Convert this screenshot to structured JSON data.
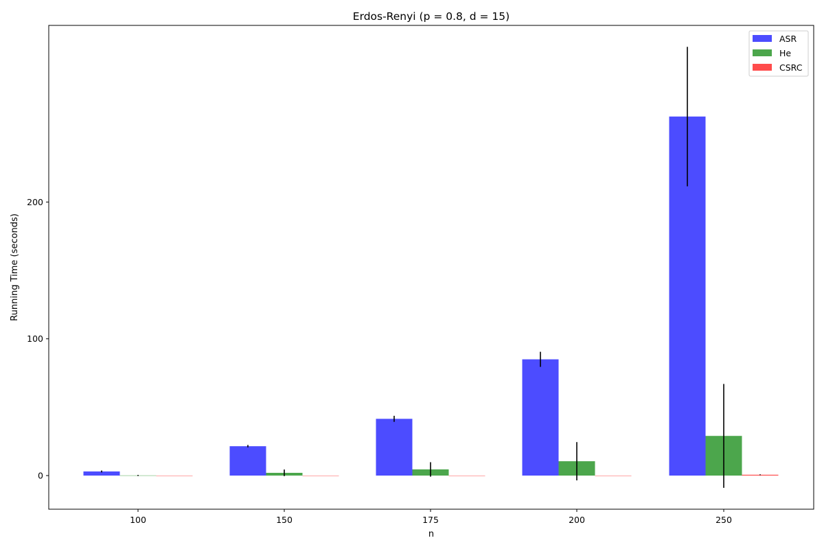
{
  "chart_data": {
    "type": "bar",
    "title": "Erdos-Renyi (p = 0.8, d = 15)",
    "xlabel": "n",
    "ylabel": "Running Time (seconds)",
    "categories": [
      "100",
      "150",
      "175",
      "200",
      "250"
    ],
    "ylim": [
      -25,
      330
    ],
    "yticks": [
      0,
      100,
      200
    ],
    "grid": false,
    "legend_position": "top-right",
    "series": [
      {
        "name": "ASR",
        "color": "#0000ff",
        "values": [
          3.0,
          21.5,
          41.5,
          85.0,
          262.5
        ],
        "errors": [
          0.7,
          0.9,
          2.2,
          5.5,
          51
        ]
      },
      {
        "name": "He",
        "color": "#008000",
        "values": [
          0.1,
          2.0,
          4.5,
          10.5,
          29.0
        ],
        "errors": [
          0.4,
          2.4,
          5.3,
          14.0,
          38.0
        ]
      },
      {
        "name": "CSRC",
        "color": "#ff0000",
        "values": [
          0.0,
          0.0,
          0.0,
          0.0,
          0.6
        ],
        "errors": [
          0.0,
          0.0,
          0.0,
          0.0,
          0.3
        ]
      }
    ]
  }
}
